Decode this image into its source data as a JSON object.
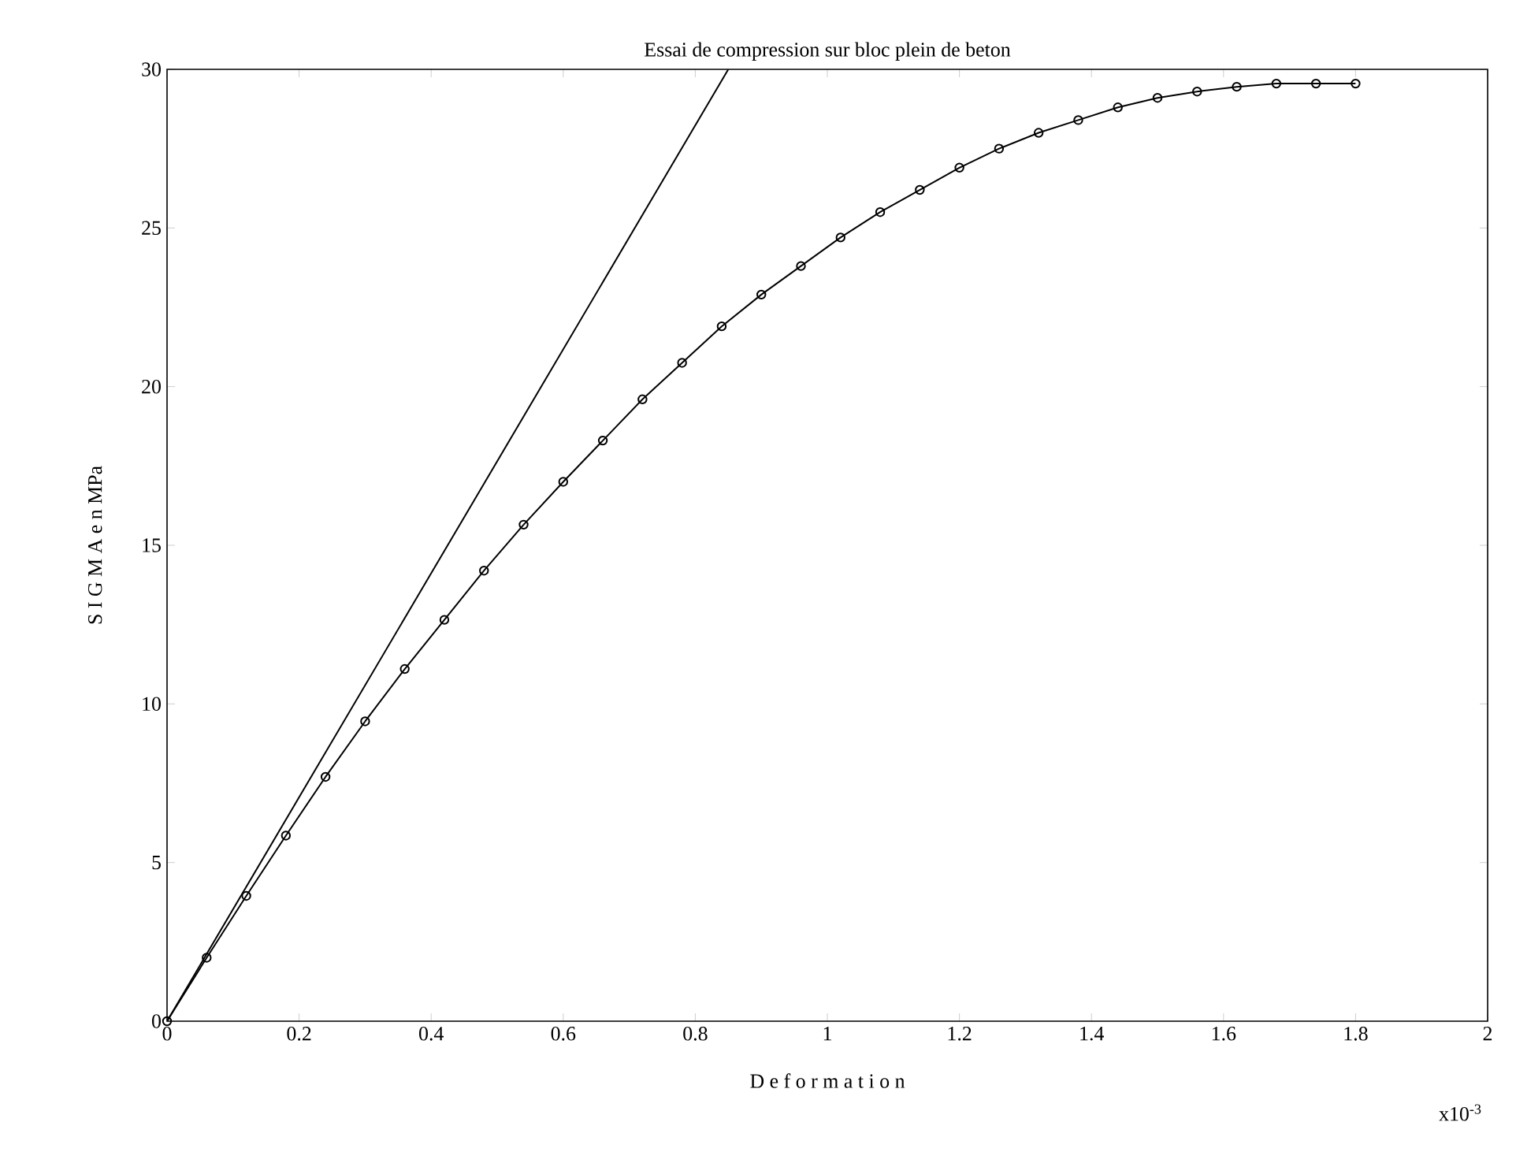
{
  "chart_data": {
    "type": "line",
    "title": "Essai de compression sur bloc plein de beton",
    "xlabel": "D e f o r m a t i o n",
    "ylabel": "S I G M A  e n  MPa",
    "annotations": [
      "x10$^{-3}$"
    ],
    "xlim": [
      0,
      2
    ],
    "ylim": [
      0,
      30
    ],
    "xticks": [
      0,
      0.2,
      0.4,
      0.6,
      0.8,
      1,
      1.2,
      1.4,
      1.6,
      1.8,
      2
    ],
    "yticks": [
      0,
      5,
      10,
      15,
      20,
      25,
      30
    ],
    "grid": false,
    "marker": "circle",
    "line_style": "solid",
    "series": [
      {
        "color": "#000000",
        "x": [
          0,
          0.06,
          0.12,
          0.18,
          0.24,
          0.3,
          0.36,
          0.42,
          0.48,
          0.54,
          0.6,
          0.66,
          0.72,
          0.78,
          0.84,
          0.9,
          0.96,
          1.02,
          1.08,
          1.14,
          1.2,
          1.26,
          1.32,
          1.38,
          1.44,
          1.5,
          1.56,
          1.62,
          1.68,
          1.74,
          1.8
        ],
        "values": [
          0,
          2.0,
          3.95,
          5.85,
          7.7,
          9.45,
          11.1,
          12.65,
          14.2,
          15.65,
          17.0,
          18.3,
          19.6,
          20.75,
          21.9,
          22.9,
          23.8,
          24.7,
          25.5,
          26.2,
          26.9,
          27.5,
          28.0,
          28.4,
          28.8,
          29.1,
          29.3,
          29.45,
          29.55,
          29.55,
          29.55
        ]
      },
      {
        "color": "#000000",
        "type": "line",
        "marker": "none",
        "x": [
          0,
          0.85
        ],
        "values": [
          0,
          30
        ]
      }
    ]
  }
}
